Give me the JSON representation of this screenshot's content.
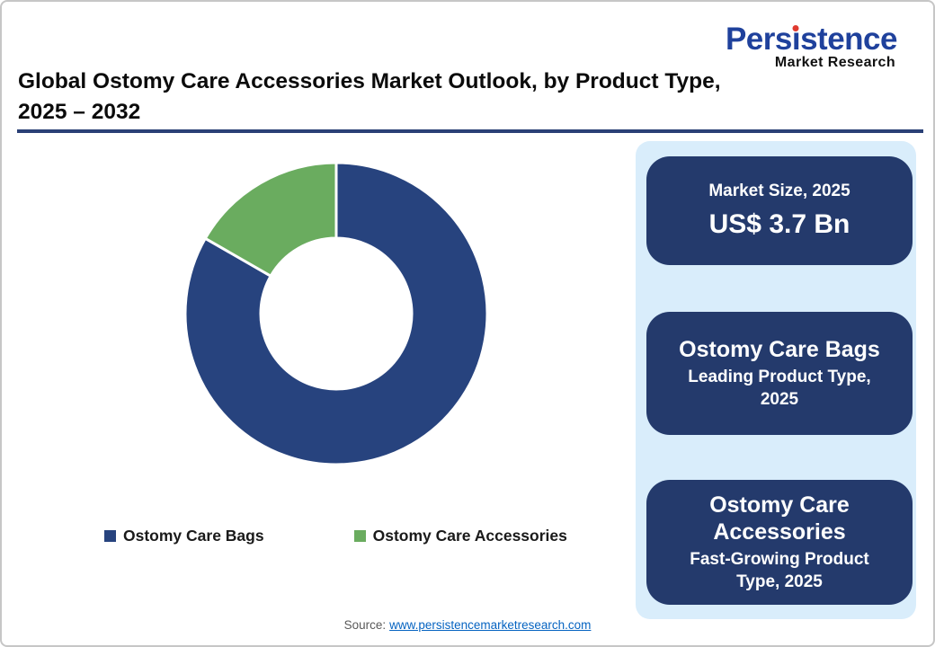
{
  "logo": {
    "brand": "Persistence",
    "brand_pre": "Pers",
    "brand_i": "ı",
    "brand_post": "stence",
    "tagline": "Market Research",
    "brand_color": "#1f419c",
    "dot_color": "#e03a2f"
  },
  "title": {
    "line1": "Global Ostomy Care Accessories Market Outlook, by Product Type,",
    "line2": "2025 – 2032"
  },
  "chart_data": {
    "type": "pie",
    "donut": true,
    "title": "Global Ostomy Care Accessories Market Outlook, by Product Type, 2025 – 2032",
    "categories": [
      "Ostomy Care Bags",
      "Ostomy Care Accessories"
    ],
    "values": [
      83.3,
      16.7
    ],
    "colors": [
      "#27437e",
      "#6aac5f"
    ],
    "start_angle_deg": 0,
    "direction": "clockwise",
    "inner_radius_ratio": 0.5,
    "legend_position": "bottom",
    "data_labels": "none"
  },
  "panel": {
    "background": "#d9edfb",
    "card_background": "#243a6c",
    "cards": [
      {
        "line1": "Market Size, 2025",
        "line2": "US$ 3.7 Bn"
      },
      {
        "line1": "Ostomy Care Bags",
        "line2": "Leading Product Type, 2025"
      },
      {
        "line1": "Ostomy Care Accessories",
        "line2": "Fast-Growing Product Type, 2025"
      }
    ]
  },
  "source": {
    "label": "Source:",
    "url_text": "www.persistencemarketresearch.com"
  },
  "colors": {
    "rule_navy": "#2a4076",
    "link_blue": "#0563c1",
    "card_border_gray": "#c6c6c6"
  }
}
